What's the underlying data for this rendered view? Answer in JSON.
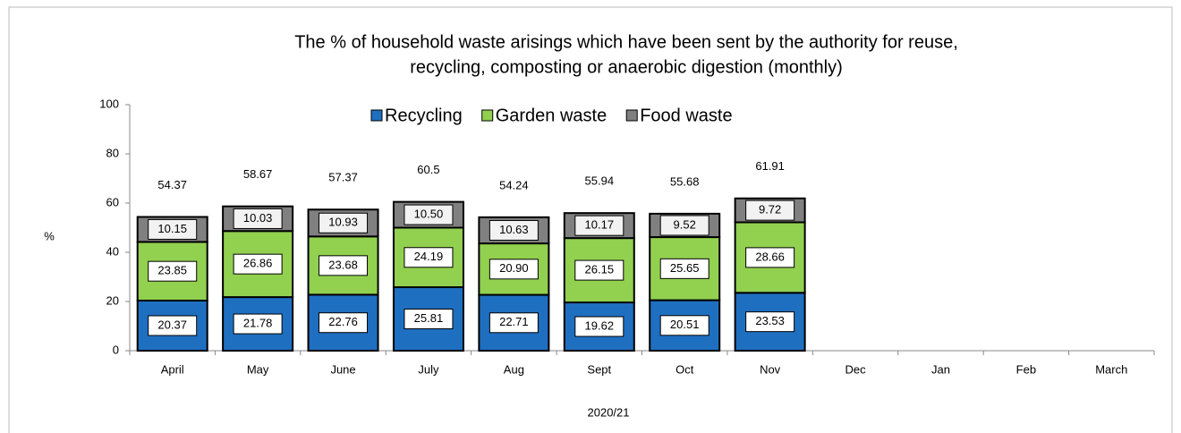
{
  "chart_data": {
    "type": "stacked_bar",
    "title": [
      "The % of household waste arisings which have been sent by the authority for reuse,",
      "recycling, composting or anaerobic digestion (monthly)"
    ],
    "x_label": "2020/21",
    "y_label": "%",
    "categories": [
      "April",
      "May",
      "June",
      "July",
      "Aug",
      "Sept",
      "Oct",
      "Nov",
      "Dec",
      "Jan",
      "Feb",
      "March"
    ],
    "series": [
      {
        "name": "Recycling",
        "color": "#1f6fc0",
        "values": [
          20.37,
          21.78,
          22.76,
          25.81,
          22.71,
          19.62,
          20.51,
          23.53,
          null,
          null,
          null,
          null
        ]
      },
      {
        "name": "Garden waste",
        "color": "#92d050",
        "values": [
          23.85,
          26.86,
          23.68,
          24.19,
          20.9,
          26.15,
          25.65,
          28.66,
          null,
          null,
          null,
          null
        ],
        "value_labels": [
          "23.85",
          "26.86",
          "23.68",
          "24.19",
          "20.90",
          "26.15",
          "25.65",
          "28.66",
          null,
          null,
          null,
          null
        ]
      },
      {
        "name": "Food waste",
        "color": "#808080",
        "values": [
          10.15,
          10.03,
          10.93,
          10.5,
          10.63,
          10.17,
          9.52,
          9.72,
          null,
          null,
          null,
          null
        ],
        "value_labels": [
          "10.15",
          "10.03",
          "10.93",
          "10.50",
          "10.63",
          "10.17",
          "9.52",
          "9.72",
          null,
          null,
          null,
          null
        ]
      }
    ],
    "totals": [
      54.37,
      58.67,
      57.37,
      60.5,
      54.24,
      55.94,
      55.68,
      61.91,
      null,
      null,
      null,
      null
    ],
    "ylim": [
      0,
      100
    ],
    "yticks": [
      0,
      20,
      40,
      60,
      80,
      100
    ],
    "grid": false,
    "legend": "top"
  }
}
